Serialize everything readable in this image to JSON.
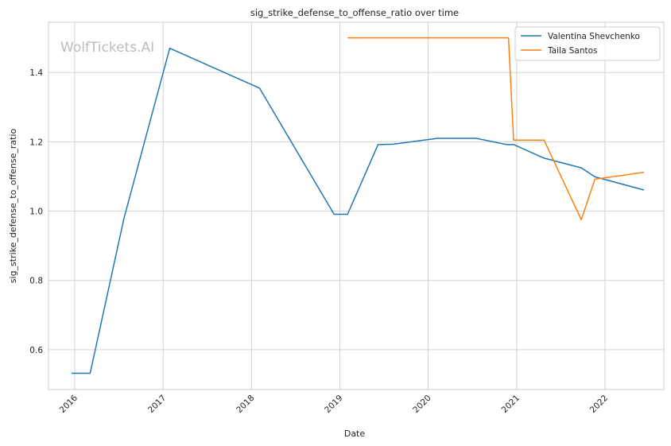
{
  "chart_data": {
    "type": "line",
    "title": "sig_strike_defense_to_offense_ratio over time",
    "xlabel": "Date",
    "ylabel": "sig_strike_defense_to_offense_ratio",
    "watermark": "WolfTickets.AI",
    "x_ticks": [
      "2016",
      "2017",
      "2018",
      "2019",
      "2020",
      "2021",
      "2022"
    ],
    "y_ticks": [
      "0.6",
      "0.8",
      "1.0",
      "1.2",
      "1.4"
    ],
    "xlim": [
      "2015-09-15",
      "2022-09-01"
    ],
    "ylim": [
      0.485,
      1.545
    ],
    "grid": true,
    "legend_position": "top-right",
    "series": [
      {
        "name": "Valentina Shevchenko",
        "color": "#1f77b4",
        "points": [
          [
            "2015-12-19",
            0.532
          ],
          [
            "2016-03-05",
            0.532
          ],
          [
            "2016-07-23",
            0.98
          ],
          [
            "2017-01-28",
            1.47
          ],
          [
            "2018-02-03",
            1.355
          ],
          [
            "2018-12-08",
            0.991
          ],
          [
            "2019-02-02",
            0.991
          ],
          [
            "2019-06-08",
            1.192
          ],
          [
            "2019-08-10",
            1.193
          ],
          [
            "2020-02-08",
            1.21
          ],
          [
            "2020-07-18",
            1.21
          ],
          [
            "2020-11-21",
            1.192
          ],
          [
            "2020-12-20",
            1.192
          ],
          [
            "2021-04-24",
            1.153
          ],
          [
            "2021-09-25",
            1.125
          ],
          [
            "2021-11-20",
            1.099
          ],
          [
            "2022-06-11",
            1.061
          ]
        ]
      },
      {
        "name": "Taila Santos",
        "color": "#ff7f0e",
        "points": [
          [
            "2019-02-02",
            1.5
          ],
          [
            "2020-11-28",
            1.5
          ],
          [
            "2020-12-19",
            1.205
          ],
          [
            "2021-04-24",
            1.205
          ],
          [
            "2021-09-25",
            0.975
          ],
          [
            "2021-11-20",
            1.092
          ],
          [
            "2022-06-11",
            1.112
          ]
        ]
      }
    ]
  }
}
